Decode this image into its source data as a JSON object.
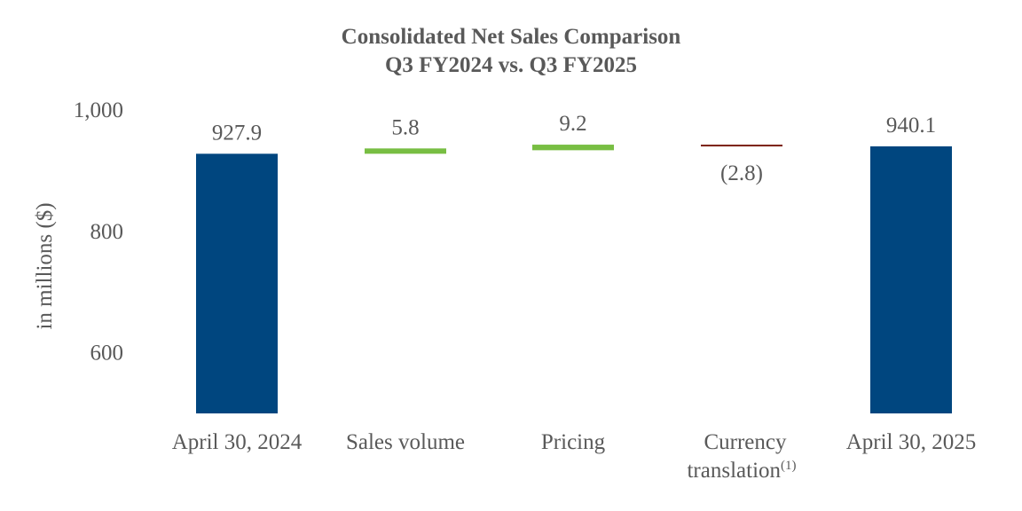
{
  "chart_data": {
    "type": "bar",
    "subtype": "waterfall",
    "title": "Consolidated Net Sales Comparison",
    "subtitle": "Q3 FY2024 vs. Q3 FY2025",
    "ylabel": "in millions ($)",
    "xlabel": "",
    "ylim": [
      500,
      1000
    ],
    "yticks": [
      600,
      800,
      "1,000"
    ],
    "ytick_values": [
      600,
      800,
      1000
    ],
    "grid": false,
    "categories": [
      "April 30, 2024",
      "Sales volume",
      "Pricing",
      "Currency translation",
      "April 30, 2025"
    ],
    "category_superscripts": [
      "",
      "",
      "",
      "(1)",
      ""
    ],
    "values": [
      927.9,
      5.8,
      9.2,
      -2.8,
      940.1
    ],
    "data_labels": [
      "927.9",
      "5.8",
      "9.2",
      "(2.8)",
      "940.1"
    ],
    "bar_kinds": [
      "total",
      "increase",
      "increase",
      "decrease",
      "total"
    ],
    "colors": {
      "total": "#00467f",
      "increase": "#78be43",
      "decrease": "#7b2010"
    }
  }
}
